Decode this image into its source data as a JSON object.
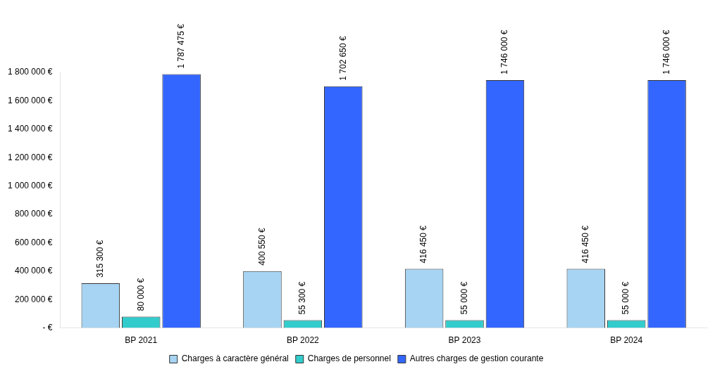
{
  "chart_data": {
    "type": "bar",
    "categories": [
      "BP 2021",
      "BP 2022",
      "BP 2023",
      "BP 2024"
    ],
    "series": [
      {
        "name": "Charges à caractère général",
        "color": "#a6d4f2",
        "values": [
          315300,
          400550,
          416450,
          416450
        ],
        "value_labels": [
          "315 300 €",
          "400 550 €",
          "416 450 €",
          "416 450 €"
        ]
      },
      {
        "name": "Charges de personnel",
        "color": "#33cccc",
        "values": [
          80000,
          55300,
          55000,
          55000
        ],
        "value_labels": [
          "80 000 €",
          "55 300 €",
          "55 000 €",
          "55 000 €"
        ]
      },
      {
        "name": "Autres charges de gestion courante",
        "color": "#3366ff",
        "values": [
          1787475,
          1702650,
          1746000,
          1746000
        ],
        "value_labels": [
          "1 787 475 €",
          "1 702 650 €",
          "1 746 000 €",
          "1 746 000 €"
        ]
      }
    ],
    "ylim": [
      0,
      1800000
    ],
    "yticks": [
      {
        "value": 0,
        "label": "- €"
      },
      {
        "value": 200000,
        "label": "200 000 €"
      },
      {
        "value": 400000,
        "label": "400 000 €"
      },
      {
        "value": 600000,
        "label": "600 000 €"
      },
      {
        "value": 800000,
        "label": "800 000 €"
      },
      {
        "value": 1000000,
        "label": "1 000 000 €"
      },
      {
        "value": 1200000,
        "label": "1 200 000 €"
      },
      {
        "value": 1400000,
        "label": "1 400 000 €"
      },
      {
        "value": 1600000,
        "label": "1 600 000 €"
      },
      {
        "value": 1800000,
        "label": "1 800 000 €"
      }
    ],
    "grid": false,
    "legend": "bottom"
  }
}
